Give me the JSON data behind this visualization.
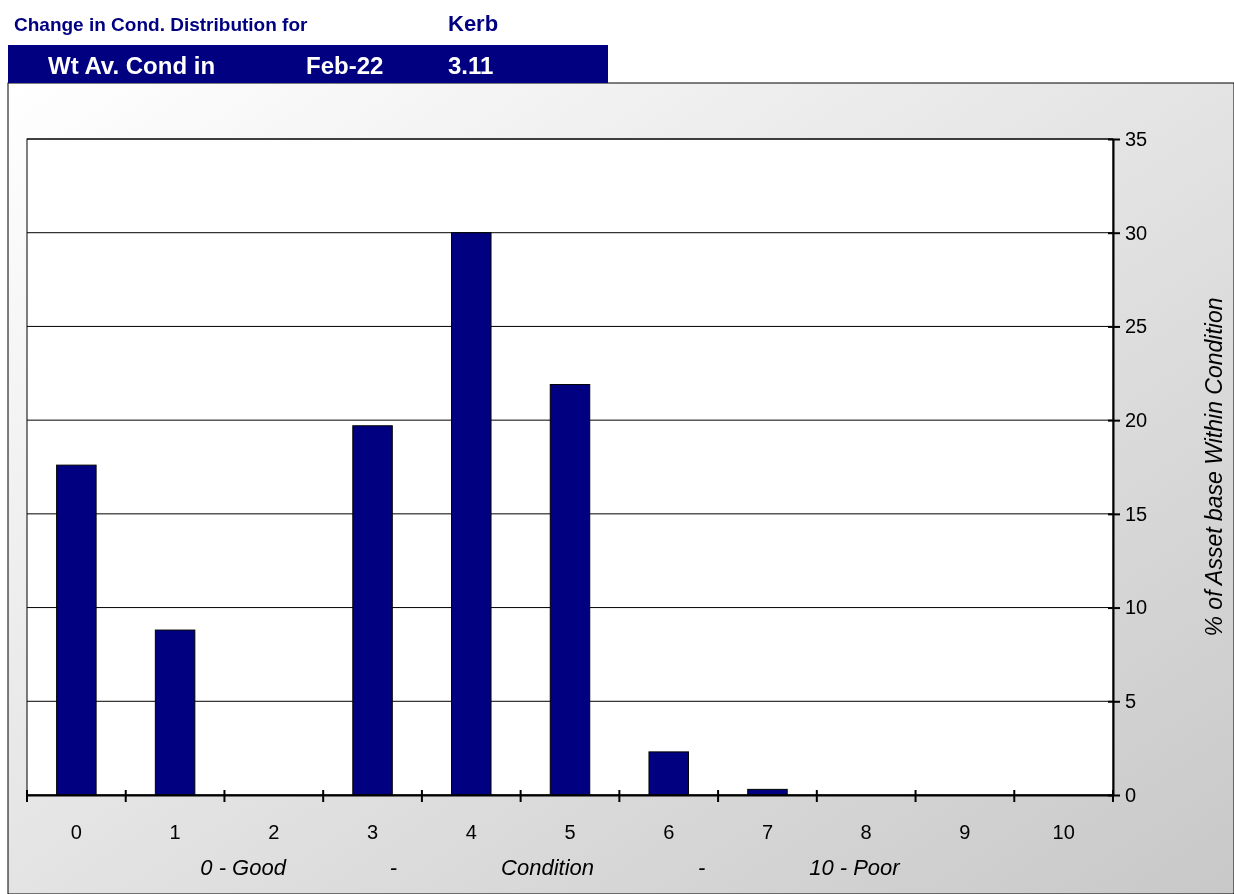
{
  "chart_data": {
    "type": "bar",
    "title": "Change in Cond. Distribution for",
    "subtitle": "Kerb",
    "annotations": [
      "Wt Av. Cond in",
      "Feb-22",
      "3.11"
    ],
    "xlabel": "0 - Good                 -                 Condition                 -                 10 - Poor",
    "ylabel": "% of Asset base Within Condition",
    "categories": [
      "0",
      "1",
      "2",
      "3",
      "4",
      "5",
      "6",
      "7",
      "8",
      "9",
      "10"
    ],
    "values": [
      17.6,
      8.8,
      0,
      19.7,
      30.0,
      21.9,
      2.3,
      0.3,
      0,
      0,
      0
    ],
    "color": "#000080",
    "ylim": [
      0,
      35
    ],
    "yticks": [
      0,
      5,
      10,
      15,
      20,
      25,
      30,
      35
    ],
    "grid": "y"
  }
}
